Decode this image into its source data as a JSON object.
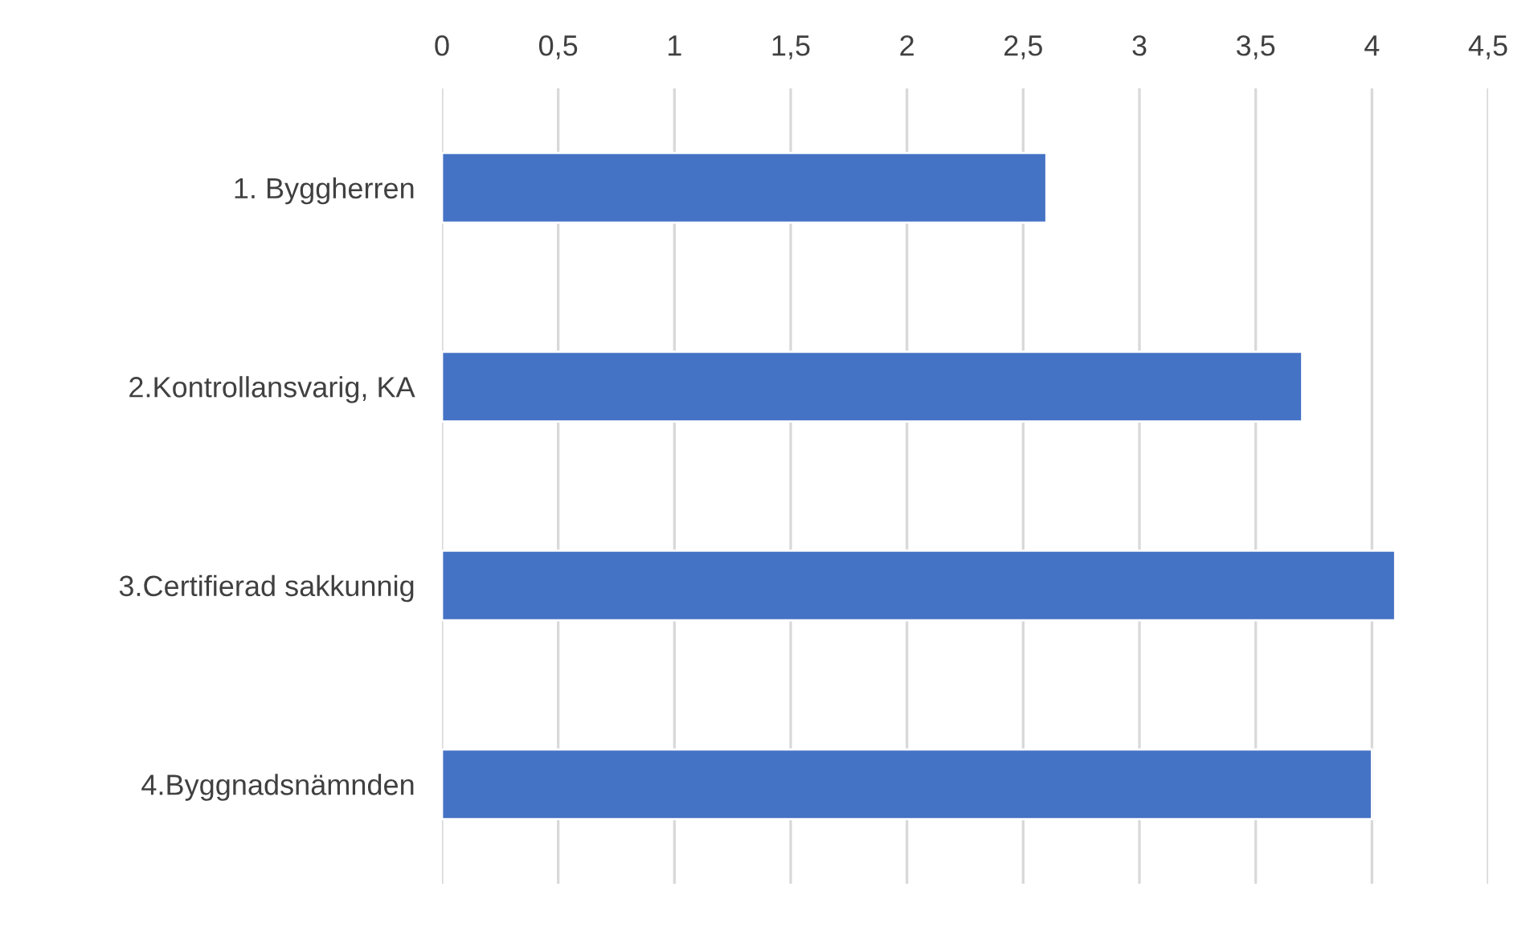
{
  "chart_data": {
    "type": "bar",
    "orientation": "horizontal",
    "categories": [
      "1. Byggherren",
      "2.Kontrollansvarig, KA",
      "3.Certifierad sakkunnig",
      "4.Byggnadsnämnden"
    ],
    "values": [
      2.6,
      3.7,
      4.1,
      4.0
    ],
    "color": "#4472c4",
    "xlim": [
      0,
      4.5
    ],
    "xticks": [
      0,
      {
        "value": 0.5,
        "label": "0,5"
      },
      1,
      {
        "value": 1.5,
        "label": "1,5"
      },
      2,
      {
        "value": 2.5,
        "label": "2,5"
      },
      3,
      {
        "value": 3.5,
        "label": "3,5"
      },
      4,
      {
        "value": 4.5,
        "label": "4,5"
      }
    ],
    "grid": "x"
  }
}
